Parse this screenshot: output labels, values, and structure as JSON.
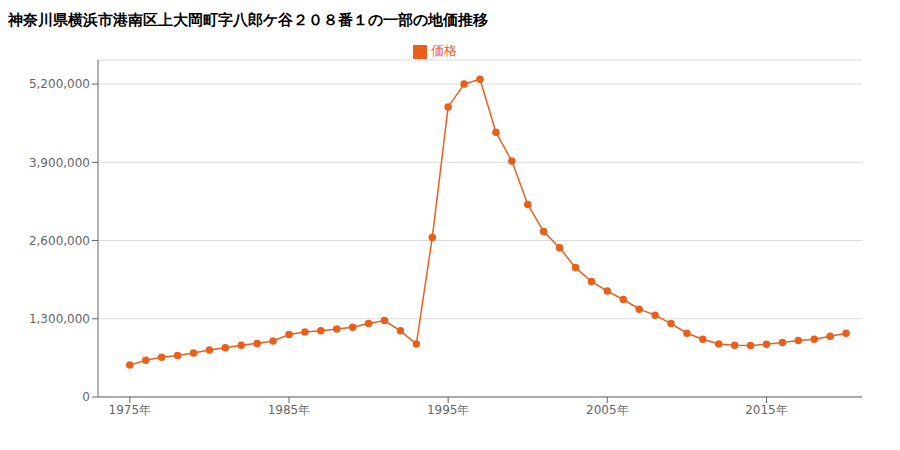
{
  "chart_data": {
    "type": "line",
    "title": "神奈川県横浜市港南区上大岡町字八郎ケ谷２０８番１の一部の地価推移",
    "x": [
      1975,
      1976,
      1977,
      1978,
      1979,
      1980,
      1981,
      1982,
      1983,
      1984,
      1985,
      1986,
      1987,
      1988,
      1989,
      1990,
      1991,
      1992,
      1993,
      1994,
      1995,
      1996,
      1997,
      1998,
      1999,
      2000,
      2001,
      2002,
      2003,
      2004,
      2005,
      2006,
      2007,
      2008,
      2009,
      2010,
      2011,
      2012,
      2013,
      2014,
      2015,
      2016,
      2017,
      2018,
      2019,
      2020
    ],
    "series": [
      {
        "name": "価格",
        "color": "#e8601c",
        "marker": "circle",
        "line_style": "solid",
        "values": [
          530000,
          610000,
          660000,
          690000,
          730000,
          780000,
          820000,
          860000,
          890000,
          930000,
          1040000,
          1080000,
          1100000,
          1130000,
          1160000,
          1220000,
          1270000,
          1100000,
          880000,
          2650000,
          4820000,
          5200000,
          5280000,
          4400000,
          3920000,
          3200000,
          2750000,
          2480000,
          2150000,
          1920000,
          1760000,
          1620000,
          1460000,
          1360000,
          1220000,
          1060000,
          960000,
          880000,
          860000,
          855000,
          875000,
          905000,
          940000,
          960000,
          1010000,
          1060000
        ]
      }
    ],
    "xlim": [
      1973,
      2021
    ],
    "xticks": [
      {
        "value": 1975,
        "label": "1975年"
      },
      {
        "value": 1985,
        "label": "1985年"
      },
      {
        "value": 1995,
        "label": "1995年"
      },
      {
        "value": 2005,
        "label": "2005年"
      },
      {
        "value": 2015,
        "label": "2015年"
      }
    ],
    "ylim": [
      0,
      5600000
    ],
    "yticks": [
      0,
      {
        "value": 1300000,
        "label": "1,300,000"
      },
      {
        "value": 2600000,
        "label": "2,600,000"
      },
      {
        "value": 3900000,
        "label": "3,900,000"
      },
      {
        "value": 5200000,
        "label": "5,200,000"
      }
    ],
    "grid": "y",
    "legend": "top"
  }
}
